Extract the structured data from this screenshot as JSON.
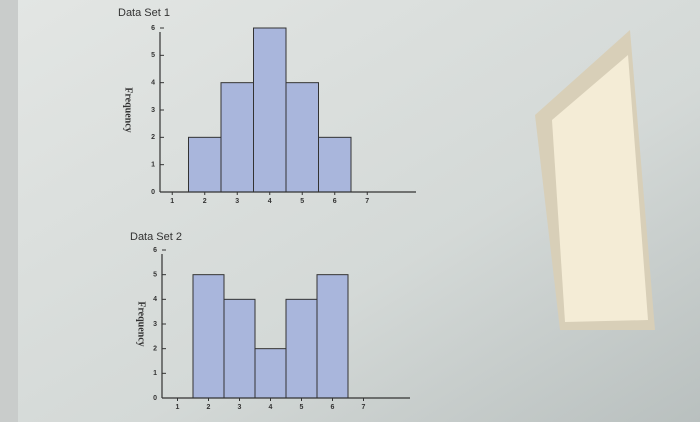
{
  "chart_data": [
    {
      "type": "histogram",
      "title": "Data Set 1",
      "y_label": "Frequency",
      "bins": [
        1.5,
        2.5,
        3.5,
        4.5,
        5.5,
        6.5
      ],
      "counts": [
        2,
        4,
        6,
        4,
        2
      ],
      "color": "#a9b6dc",
      "xlim": [
        0.5,
        8.5
      ],
      "xticks": [
        1,
        2,
        3,
        4,
        5,
        6,
        7
      ],
      "ylim": [
        0,
        6
      ],
      "yticks": [
        0,
        1,
        2,
        3,
        4,
        5,
        6
      ]
    },
    {
      "type": "histogram",
      "title": "Data Set 2",
      "y_label": "Frequency",
      "bins": [
        1.5,
        2.5,
        3.5,
        4.5,
        5.5,
        6.5
      ],
      "counts": [
        5,
        4,
        2,
        4,
        5
      ],
      "color": "#a9b6dc",
      "xlim": [
        0.5,
        8.5
      ],
      "xticks": [
        1,
        2,
        3,
        4,
        5,
        6,
        7
      ],
      "ylim": [
        0,
        6
      ],
      "yticks": [
        0,
        1,
        2,
        3,
        4,
        5,
        6
      ]
    }
  ]
}
